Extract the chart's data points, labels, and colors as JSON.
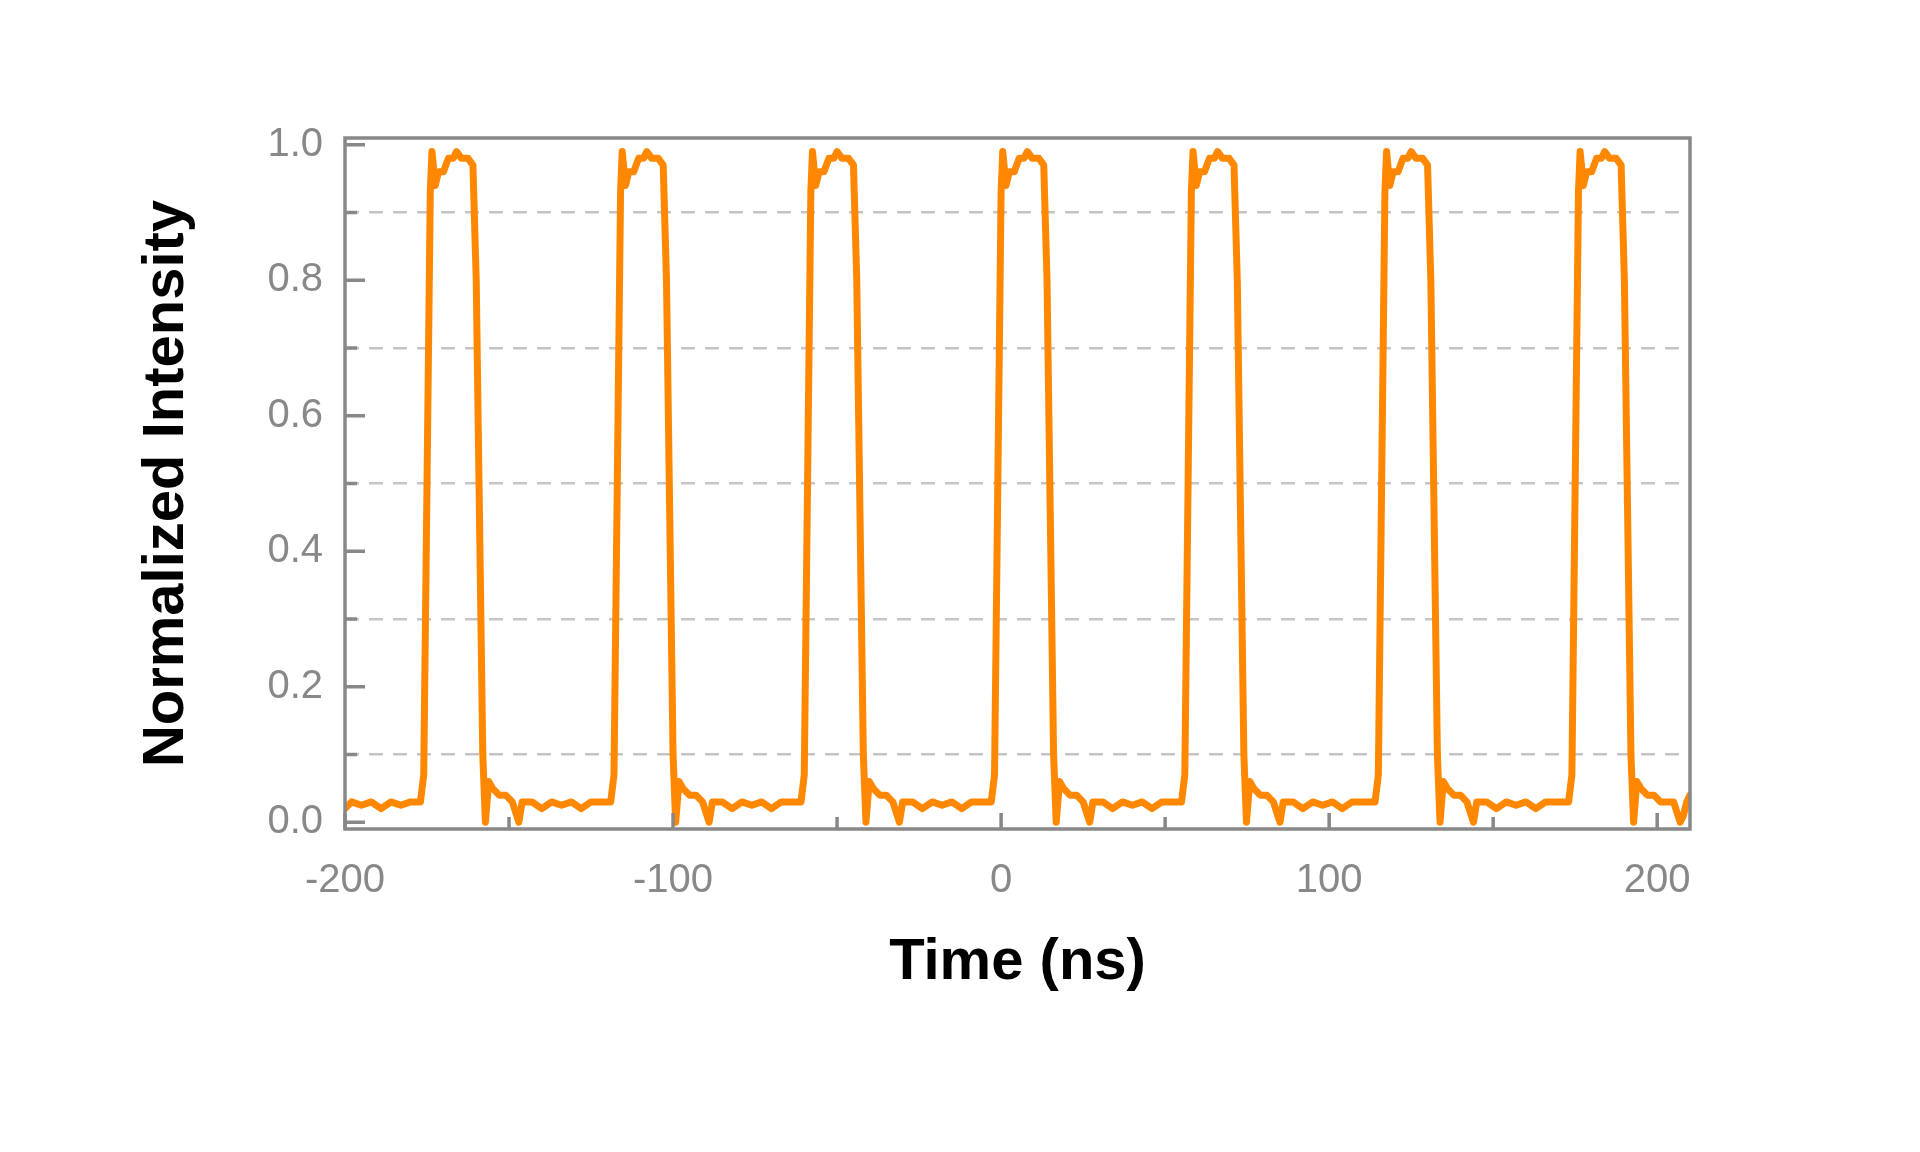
{
  "chart_data": {
    "type": "line",
    "xlabel": "Time (ns)",
    "ylabel": "Normalized Intensity",
    "xlim": [
      -200,
      210
    ],
    "ylim": [
      -0.01,
      1.01
    ],
    "xticks": [
      -200,
      {
        "value": -150,
        "label": null
      },
      -100,
      {
        "value": -50,
        "label": null
      },
      0,
      {
        "value": 50,
        "label": null
      },
      100,
      {
        "value": 150,
        "label": null
      },
      200
    ],
    "yticks": [
      {
        "value": 0,
        "label": "0.0"
      },
      {
        "value": 0.1,
        "label": null
      },
      0.2,
      {
        "value": 0.3,
        "label": null
      },
      0.4,
      {
        "value": 0.5,
        "label": null
      },
      0.6,
      {
        "value": 0.7,
        "label": null
      },
      0.8,
      {
        "value": 0.9,
        "label": null
      },
      {
        "value": 1,
        "label": "1.0"
      }
    ],
    "grid": "y",
    "legend": false,
    "marker": "none",
    "line_style": "solid",
    "series": [
      {
        "color": "#ff8800",
        "x": [
          -200,
          -198,
          -195,
          -192,
          -189,
          -186,
          -183,
          -180,
          -177,
          -176,
          -175,
          -174,
          -173.5,
          -172.5,
          -171.5,
          -170,
          -168.5,
          -167,
          -166,
          -164.5,
          -162.5,
          -161,
          -160,
          -159,
          -158,
          -157.2,
          -156.2,
          -155,
          -153,
          -151,
          -149,
          -147,
          -146,
          -143,
          -140,
          -137,
          -134,
          -131,
          -128,
          -125,
          -122,
          -119,
          -118,
          -117,
          -116,
          -115.5,
          -114.5,
          -113.5,
          -112,
          -110.5,
          -109,
          -108,
          -106.5,
          -104.5,
          -103,
          -102,
          -101,
          -100,
          -99.2,
          -98.2,
          -97,
          -95,
          -93,
          -91,
          -89,
          -88,
          -85,
          -82,
          -79,
          -76,
          -73,
          -70,
          -67,
          -64,
          -61,
          -60,
          -59,
          -58,
          -57.5,
          -56.5,
          -55.5,
          -54,
          -52.5,
          -51,
          -50,
          -48.5,
          -46.5,
          -45,
          -44,
          -43,
          -42,
          -41.2,
          -40.2,
          -39,
          -37,
          -35,
          -33,
          -31,
          -30,
          -27,
          -24,
          -21,
          -18,
          -15,
          -12,
          -9,
          -6,
          -3,
          -2,
          -1,
          0,
          0.5,
          1.5,
          2.5,
          4,
          5.5,
          7,
          8,
          9.5,
          11.5,
          13,
          14,
          15,
          16,
          16.8,
          17.8,
          19,
          21,
          23,
          25,
          27,
          28,
          31,
          34,
          37,
          40,
          43,
          46,
          49,
          52,
          55,
          56,
          57,
          58,
          58.5,
          59.5,
          60.5,
          62,
          63.5,
          65,
          66,
          67.5,
          69.5,
          71,
          72,
          73,
          74,
          74.8,
          75.8,
          77,
          79,
          81,
          83,
          85,
          86,
          89,
          92,
          95,
          98,
          101,
          104,
          107,
          110,
          114,
          115,
          116,
          117,
          117.5,
          118.5,
          119.5,
          121,
          122.5,
          124,
          125,
          126.5,
          128.5,
          130,
          131,
          132,
          133,
          133.8,
          134.8,
          136,
          138,
          140,
          142,
          144,
          145,
          148,
          151,
          154,
          157,
          160,
          163,
          166,
          169,
          173,
          174,
          175,
          176,
          176.5,
          177.5,
          178.5,
          180,
          181.5,
          183,
          184,
          185.5,
          187.5,
          189,
          190,
          191,
          192,
          192.8,
          193.8,
          195,
          197,
          199,
          201,
          203,
          205,
          207,
          208,
          209,
          210
        ],
        "values": [
          0.02,
          0.03,
          0.025,
          0.03,
          0.02,
          0.03,
          0.025,
          0.03,
          0.03,
          0.07,
          0.5,
          0.93,
          0.99,
          0.94,
          0.96,
          0.96,
          0.98,
          0.98,
          0.99,
          0.98,
          0.98,
          0.97,
          0.8,
          0.45,
          0.1,
          0,
          0.06,
          0.05,
          0.04,
          0.04,
          0.03,
          0,
          0.03,
          0.03,
          0.02,
          0.03,
          0.025,
          0.03,
          0.02,
          0.03,
          0.03,
          0.03,
          0.07,
          0.5,
          0.93,
          0.99,
          0.94,
          0.96,
          0.96,
          0.98,
          0.98,
          0.99,
          0.98,
          0.98,
          0.97,
          0.8,
          0.45,
          0.1,
          0,
          0.06,
          0.05,
          0.04,
          0.04,
          0.03,
          0,
          0.03,
          0.03,
          0.02,
          0.03,
          0.025,
          0.03,
          0.02,
          0.03,
          0.03,
          0.03,
          0.07,
          0.5,
          0.93,
          0.99,
          0.94,
          0.96,
          0.96,
          0.98,
          0.98,
          0.99,
          0.98,
          0.98,
          0.97,
          0.8,
          0.45,
          0.1,
          0,
          0.06,
          0.05,
          0.04,
          0.04,
          0.03,
          0,
          0.03,
          0.03,
          0.02,
          0.03,
          0.025,
          0.03,
          0.02,
          0.03,
          0.03,
          0.03,
          0.07,
          0.5,
          0.93,
          0.99,
          0.94,
          0.96,
          0.96,
          0.98,
          0.98,
          0.99,
          0.98,
          0.98,
          0.97,
          0.8,
          0.45,
          0.1,
          0,
          0.06,
          0.05,
          0.04,
          0.04,
          0.03,
          0,
          0.03,
          0.03,
          0.02,
          0.03,
          0.025,
          0.03,
          0.02,
          0.03,
          0.03,
          0.03,
          0.07,
          0.5,
          0.93,
          0.99,
          0.94,
          0.96,
          0.96,
          0.98,
          0.98,
          0.99,
          0.98,
          0.98,
          0.97,
          0.8,
          0.45,
          0.1,
          0,
          0.06,
          0.05,
          0.04,
          0.04,
          0.03,
          0,
          0.03,
          0.03,
          0.02,
          0.03,
          0.025,
          0.03,
          0.02,
          0.03,
          0.03,
          0.03,
          0.07,
          0.5,
          0.93,
          0.99,
          0.94,
          0.96,
          0.96,
          0.98,
          0.98,
          0.99,
          0.98,
          0.98,
          0.97,
          0.8,
          0.45,
          0.1,
          0,
          0.06,
          0.05,
          0.04,
          0.04,
          0.03,
          0,
          0.03,
          0.03,
          0.02,
          0.03,
          0.025,
          0.03,
          0.02,
          0.03,
          0.03,
          0.03,
          0.07,
          0.5,
          0.93,
          0.99,
          0.94,
          0.96,
          0.96,
          0.98,
          0.98,
          0.99,
          0.98,
          0.98,
          0.97,
          0.8,
          0.45,
          0.1,
          0,
          0.06,
          0.05,
          0.04,
          0.04,
          0.03,
          0.03,
          0.03,
          0,
          0.01,
          0.03,
          0.04
        ]
      }
    ]
  }
}
